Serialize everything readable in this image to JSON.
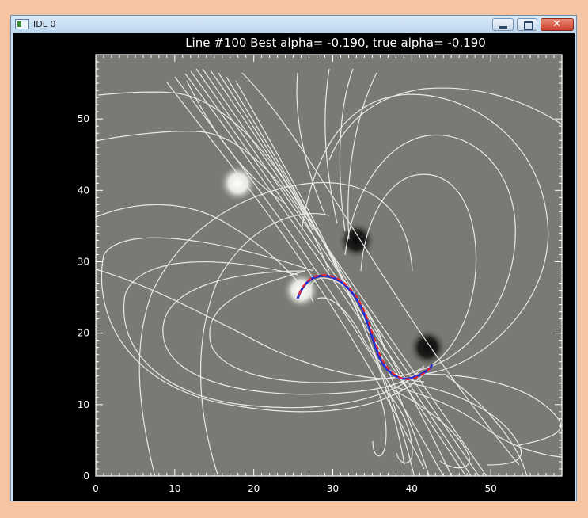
{
  "window": {
    "title": "IDL 0"
  },
  "plot": {
    "title": "Line #100 Best alpha= -0.190, true alpha= -0.190",
    "background_color": "#7a7a74",
    "axis_color": "#ffffff",
    "fieldline_color": "#e8e8e8",
    "best_curve_color": "#e8252d",
    "true_curve_color": "#1f2fd6",
    "xlim": [
      0,
      59
    ],
    "ylim": [
      0,
      59
    ],
    "x_ticks": [
      "0",
      "10",
      "20",
      "30",
      "40",
      "50"
    ],
    "y_ticks": [
      "0",
      "10",
      "20",
      "30",
      "40",
      "50"
    ],
    "sources": [
      {
        "kind": "positive",
        "x": 18,
        "y": 41
      },
      {
        "kind": "negative",
        "x": 33,
        "y": 33
      },
      {
        "kind": "positive",
        "x": 26,
        "y": 26
      },
      {
        "kind": "negative",
        "x": 42,
        "y": 18
      }
    ]
  }
}
